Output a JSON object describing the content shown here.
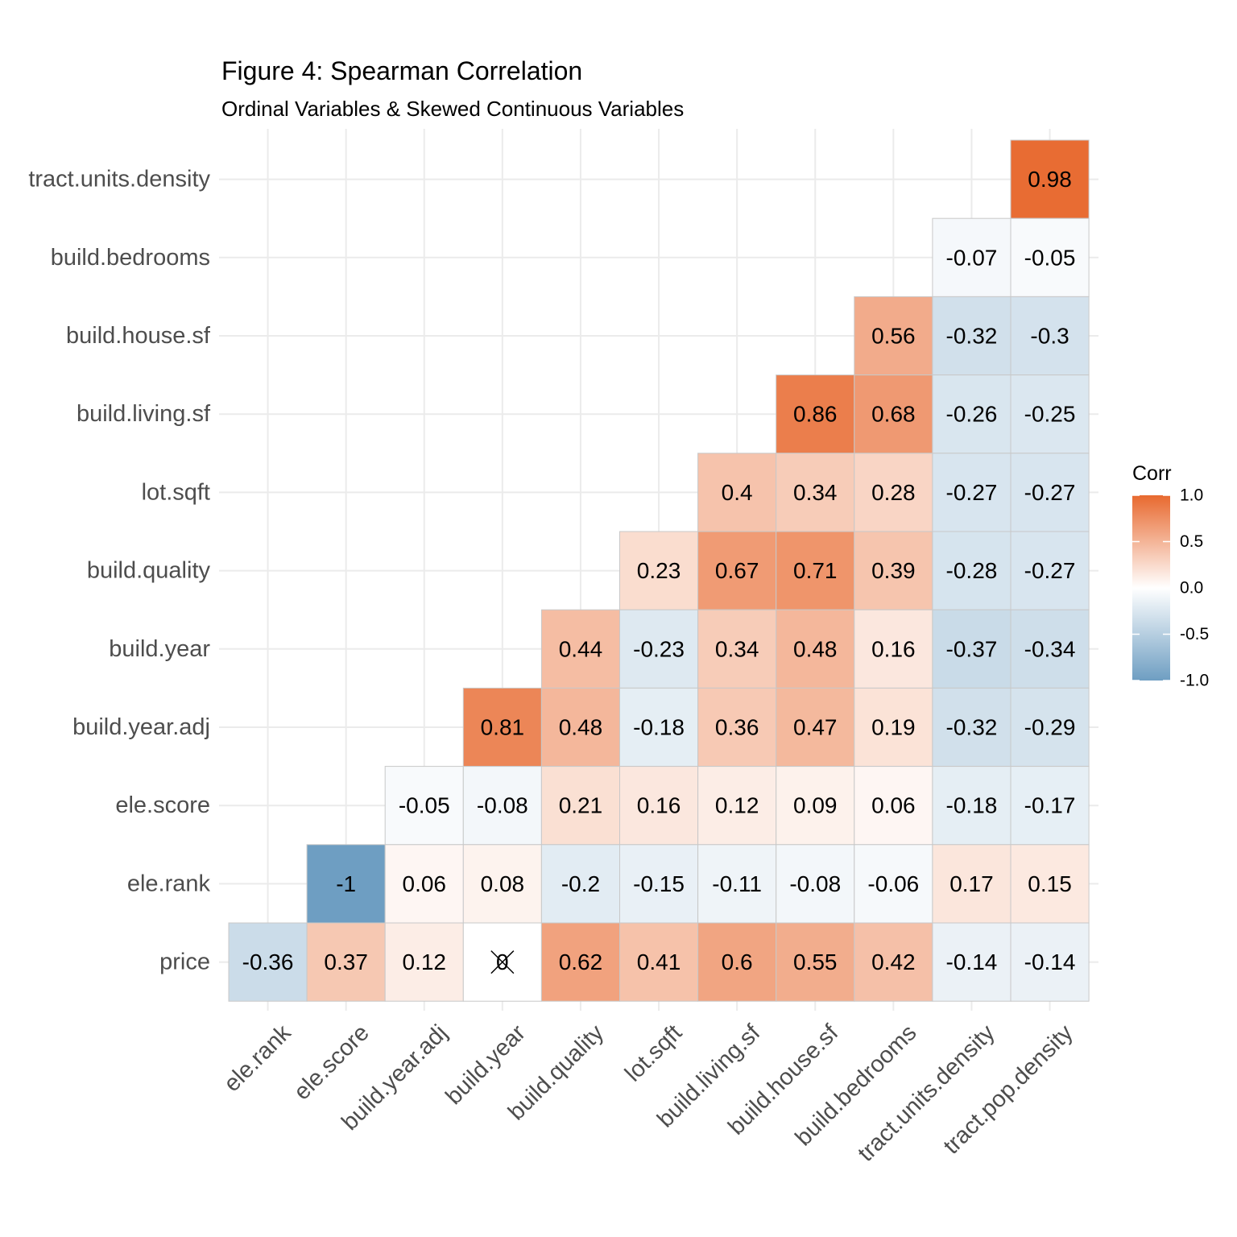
{
  "title": "Figure 4: Spearman Correlation",
  "subtitle": "Ordinal Variables & Skewed Continuous Variables",
  "chart_data": {
    "type": "heatmap",
    "x_categories": [
      "ele.rank",
      "ele.score",
      "build.year.adj",
      "build.year",
      "build.quality",
      "lot.sqft",
      "build.living.sf",
      "build.house.sf",
      "build.bedrooms",
      "tract.units.density",
      "tract.pop.density"
    ],
    "y_categories": [
      "price",
      "ele.rank",
      "ele.score",
      "build.year.adj",
      "build.year",
      "build.quality",
      "lot.sqft",
      "build.living.sf",
      "build.house.sf",
      "build.bedrooms",
      "tract.units.density"
    ],
    "cells": [
      {
        "y": "tract.units.density",
        "x": "tract.pop.density",
        "value": 0.98,
        "label": "0.98"
      },
      {
        "y": "build.bedrooms",
        "x": "tract.units.density",
        "value": -0.07,
        "label": "-0.07"
      },
      {
        "y": "build.bedrooms",
        "x": "tract.pop.density",
        "value": -0.05,
        "label": "-0.05"
      },
      {
        "y": "build.house.sf",
        "x": "build.bedrooms",
        "value": 0.56,
        "label": "0.56"
      },
      {
        "y": "build.house.sf",
        "x": "tract.units.density",
        "value": -0.32,
        "label": "-0.32"
      },
      {
        "y": "build.house.sf",
        "x": "tract.pop.density",
        "value": -0.3,
        "label": "-0.3"
      },
      {
        "y": "build.living.sf",
        "x": "build.house.sf",
        "value": 0.86,
        "label": "0.86"
      },
      {
        "y": "build.living.sf",
        "x": "build.bedrooms",
        "value": 0.68,
        "label": "0.68"
      },
      {
        "y": "build.living.sf",
        "x": "tract.units.density",
        "value": -0.26,
        "label": "-0.26"
      },
      {
        "y": "build.living.sf",
        "x": "tract.pop.density",
        "value": -0.25,
        "label": "-0.25"
      },
      {
        "y": "lot.sqft",
        "x": "build.living.sf",
        "value": 0.4,
        "label": "0.4"
      },
      {
        "y": "lot.sqft",
        "x": "build.house.sf",
        "value": 0.34,
        "label": "0.34"
      },
      {
        "y": "lot.sqft",
        "x": "build.bedrooms",
        "value": 0.28,
        "label": "0.28"
      },
      {
        "y": "lot.sqft",
        "x": "tract.units.density",
        "value": -0.27,
        "label": "-0.27"
      },
      {
        "y": "lot.sqft",
        "x": "tract.pop.density",
        "value": -0.27,
        "label": "-0.27"
      },
      {
        "y": "build.quality",
        "x": "lot.sqft",
        "value": 0.23,
        "label": "0.23"
      },
      {
        "y": "build.quality",
        "x": "build.living.sf",
        "value": 0.67,
        "label": "0.67"
      },
      {
        "y": "build.quality",
        "x": "build.house.sf",
        "value": 0.71,
        "label": "0.71"
      },
      {
        "y": "build.quality",
        "x": "build.bedrooms",
        "value": 0.39,
        "label": "0.39"
      },
      {
        "y": "build.quality",
        "x": "tract.units.density",
        "value": -0.28,
        "label": "-0.28"
      },
      {
        "y": "build.quality",
        "x": "tract.pop.density",
        "value": -0.27,
        "label": "-0.27"
      },
      {
        "y": "build.year",
        "x": "build.quality",
        "value": 0.44,
        "label": "0.44"
      },
      {
        "y": "build.year",
        "x": "lot.sqft",
        "value": -0.23,
        "label": "-0.23"
      },
      {
        "y": "build.year",
        "x": "build.living.sf",
        "value": 0.34,
        "label": "0.34"
      },
      {
        "y": "build.year",
        "x": "build.house.sf",
        "value": 0.48,
        "label": "0.48"
      },
      {
        "y": "build.year",
        "x": "build.bedrooms",
        "value": 0.16,
        "label": "0.16"
      },
      {
        "y": "build.year",
        "x": "tract.units.density",
        "value": -0.37,
        "label": "-0.37"
      },
      {
        "y": "build.year",
        "x": "tract.pop.density",
        "value": -0.34,
        "label": "-0.34"
      },
      {
        "y": "build.year.adj",
        "x": "build.year",
        "value": 0.81,
        "label": "0.81"
      },
      {
        "y": "build.year.adj",
        "x": "build.quality",
        "value": 0.48,
        "label": "0.48"
      },
      {
        "y": "build.year.adj",
        "x": "lot.sqft",
        "value": -0.18,
        "label": "-0.18"
      },
      {
        "y": "build.year.adj",
        "x": "build.living.sf",
        "value": 0.36,
        "label": "0.36"
      },
      {
        "y": "build.year.adj",
        "x": "build.house.sf",
        "value": 0.47,
        "label": "0.47"
      },
      {
        "y": "build.year.adj",
        "x": "build.bedrooms",
        "value": 0.19,
        "label": "0.19"
      },
      {
        "y": "build.year.adj",
        "x": "tract.units.density",
        "value": -0.32,
        "label": "-0.32"
      },
      {
        "y": "build.year.adj",
        "x": "tract.pop.density",
        "value": -0.29,
        "label": "-0.29"
      },
      {
        "y": "ele.score",
        "x": "build.year.adj",
        "value": -0.05,
        "label": "-0.05"
      },
      {
        "y": "ele.score",
        "x": "build.year",
        "value": -0.08,
        "label": "-0.08"
      },
      {
        "y": "ele.score",
        "x": "build.quality",
        "value": 0.21,
        "label": "0.21"
      },
      {
        "y": "ele.score",
        "x": "lot.sqft",
        "value": 0.16,
        "label": "0.16"
      },
      {
        "y": "ele.score",
        "x": "build.living.sf",
        "value": 0.12,
        "label": "0.12"
      },
      {
        "y": "ele.score",
        "x": "build.house.sf",
        "value": 0.09,
        "label": "0.09"
      },
      {
        "y": "ele.score",
        "x": "build.bedrooms",
        "value": 0.06,
        "label": "0.06"
      },
      {
        "y": "ele.score",
        "x": "tract.units.density",
        "value": -0.18,
        "label": "-0.18"
      },
      {
        "y": "ele.score",
        "x": "tract.pop.density",
        "value": -0.17,
        "label": "-0.17"
      },
      {
        "y": "ele.rank",
        "x": "ele.score",
        "value": -1,
        "label": "-1"
      },
      {
        "y": "ele.rank",
        "x": "build.year.adj",
        "value": 0.06,
        "label": "0.06"
      },
      {
        "y": "ele.rank",
        "x": "build.year",
        "value": 0.08,
        "label": "0.08"
      },
      {
        "y": "ele.rank",
        "x": "build.quality",
        "value": -0.2,
        "label": "-0.2"
      },
      {
        "y": "ele.rank",
        "x": "lot.sqft",
        "value": -0.15,
        "label": "-0.15"
      },
      {
        "y": "ele.rank",
        "x": "build.living.sf",
        "value": -0.11,
        "label": "-0.11"
      },
      {
        "y": "ele.rank",
        "x": "build.house.sf",
        "value": -0.08,
        "label": "-0.08"
      },
      {
        "y": "ele.rank",
        "x": "build.bedrooms",
        "value": -0.06,
        "label": "-0.06"
      },
      {
        "y": "ele.rank",
        "x": "tract.units.density",
        "value": 0.17,
        "label": "0.17"
      },
      {
        "y": "ele.rank",
        "x": "tract.pop.density",
        "value": 0.15,
        "label": "0.15"
      },
      {
        "y": "price",
        "x": "ele.rank",
        "value": -0.36,
        "label": "-0.36"
      },
      {
        "y": "price",
        "x": "ele.score",
        "value": 0.37,
        "label": "0.37"
      },
      {
        "y": "price",
        "x": "build.year.adj",
        "value": 0.12,
        "label": "0.12"
      },
      {
        "y": "price",
        "x": "build.year",
        "value": 0,
        "label": "0",
        "crossed": true
      },
      {
        "y": "price",
        "x": "build.quality",
        "value": 0.62,
        "label": "0.62"
      },
      {
        "y": "price",
        "x": "lot.sqft",
        "value": 0.41,
        "label": "0.41"
      },
      {
        "y": "price",
        "x": "build.living.sf",
        "value": 0.6,
        "label": "0.6"
      },
      {
        "y": "price",
        "x": "build.house.sf",
        "value": 0.55,
        "label": "0.55"
      },
      {
        "y": "price",
        "x": "build.bedrooms",
        "value": 0.42,
        "label": "0.42"
      },
      {
        "y": "price",
        "x": "tract.units.density",
        "value": -0.14,
        "label": "-0.14"
      },
      {
        "y": "price",
        "x": "tract.pop.density",
        "value": -0.14,
        "label": "-0.14"
      }
    ],
    "legend": {
      "title": "Corr",
      "ticks": [
        "1.0",
        "0.5",
        "0.0",
        "-0.5",
        "-1.0"
      ],
      "tick_values": [
        1,
        0.5,
        0,
        -0.5,
        -1
      ],
      "range": [
        -1,
        1
      ],
      "low_color": "#6E9EC2",
      "mid_color": "#FFFFFF",
      "high_color": "#E8692F",
      "placement": "right"
    },
    "grid": true
  }
}
